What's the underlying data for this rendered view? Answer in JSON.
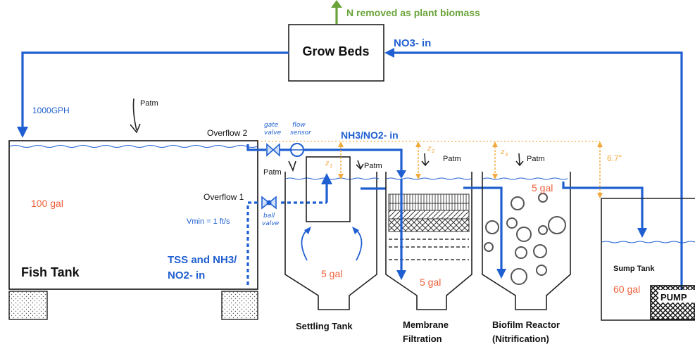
{
  "top": {
    "n_removed": "N removed as plant biomass",
    "grow_beds": "Grow Beds",
    "no3_in": "NO3- in"
  },
  "fish_tank": {
    "flow_rate": "1000GPH",
    "patm": "Patm",
    "overflow2": "Overflow 2",
    "overflow1": "Overflow 1",
    "volume": "100 gal",
    "vmin": "Vmin = 1 ft/s",
    "title": "Fish Tank",
    "tss_line1": "TSS and NH3/",
    "tss_line2": "NO2- in"
  },
  "annotations": {
    "gate_valve_1": "gate",
    "gate_valve_2": "valve",
    "flow_sensor_1": "flow",
    "flow_sensor_2": "sensor",
    "ball_valve_1": "ball",
    "ball_valve_2": "valve",
    "nh3_no2_in": "NH3/NO2- in",
    "z1": "z",
    "z1_sub": "1",
    "z2": "z",
    "z2_sub": "2",
    "z3": "z",
    "z3_sub": "3",
    "height_6_7": "6.7\""
  },
  "settling": {
    "patm_left": "Patm",
    "patm_right": "Patm",
    "volume": "5 gal",
    "label": "Settling Tank"
  },
  "membrane": {
    "patm": "Patm",
    "volume": "5 gal",
    "label_line1": "Membrane",
    "label_line2": "Filtration"
  },
  "biofilm": {
    "patm": "Patm",
    "volume": "5 gal",
    "label_line1": "Biofilm Reactor",
    "label_line2": "(Nitrification)"
  },
  "sump": {
    "label": "Sump Tank",
    "volume": "60 gal",
    "pump": "PUMP"
  },
  "colors": {
    "pipe_blue": "#1f5fd1",
    "volume_orange": "#f0603a",
    "height_gold": "#f2a93b",
    "plant_green": "#6aa33a"
  }
}
